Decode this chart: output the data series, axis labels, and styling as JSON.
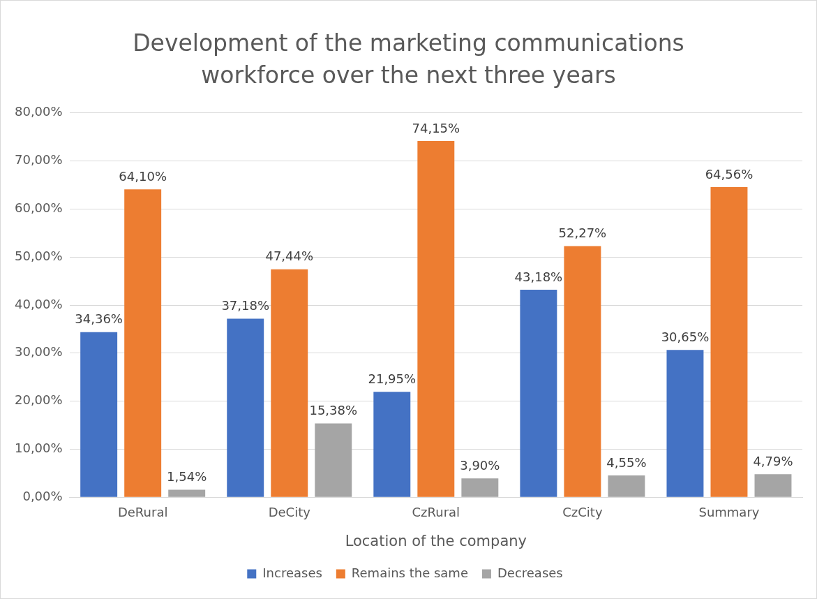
{
  "chart_data": {
    "type": "bar",
    "title": "Development of the marketing communications workforce over the next three years",
    "xlabel": "Location of the company",
    "categories": [
      "DeRural",
      "DeCity",
      "CzRural",
      "CzCity",
      "Summary"
    ],
    "series": [
      {
        "name": "Increases",
        "color": "#4472c4",
        "values": [
          34.36,
          37.18,
          21.95,
          43.18,
          30.65
        ],
        "value_labels": [
          "34,36%",
          "37,18%",
          "21,95%",
          "43,18%",
          "30,65%"
        ]
      },
      {
        "name": "Remains the same",
        "color": "#ed7d31",
        "values": [
          64.1,
          47.44,
          74.15,
          52.27,
          64.56
        ],
        "value_labels": [
          "64,10%",
          "47,44%",
          "74,15%",
          "52,27%",
          "64,56%"
        ]
      },
      {
        "name": "Decreases",
        "color": "#a5a5a5",
        "values": [
          1.54,
          15.38,
          3.9,
          4.55,
          4.79
        ],
        "value_labels": [
          "1,54%",
          "15,38%",
          "3,90%",
          "4,55%",
          "4,79%"
        ]
      }
    ],
    "ylim": [
      0,
      80
    ],
    "yticks": [
      {
        "value": 0,
        "label": "0,00%"
      },
      {
        "value": 10,
        "label": "10,00%"
      },
      {
        "value": 20,
        "label": "20,00%"
      },
      {
        "value": 30,
        "label": "30,00%"
      },
      {
        "value": 40,
        "label": "40,00%"
      },
      {
        "value": 50,
        "label": "50,00%"
      },
      {
        "value": 60,
        "label": "60,00%"
      },
      {
        "value": 70,
        "label": "70,00%"
      },
      {
        "value": 80,
        "label": "80,00%"
      }
    ],
    "grid": "y",
    "legend": "bottom"
  }
}
